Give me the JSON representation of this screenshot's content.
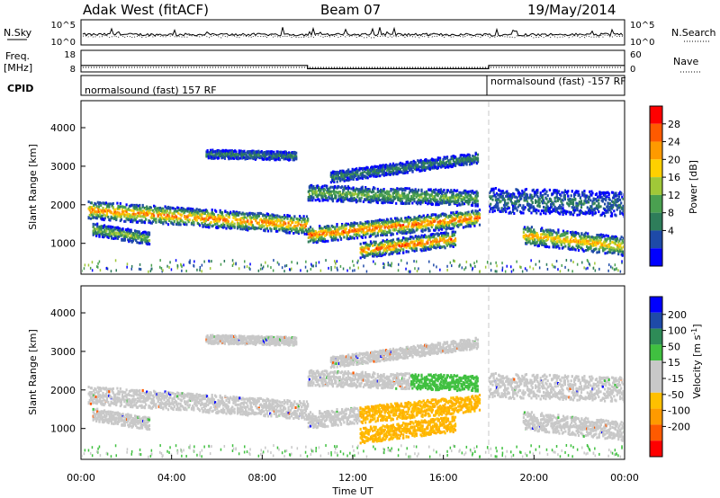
{
  "header": {
    "station": "Adak West (fitACF)",
    "beam": "Beam 07",
    "date": "19/May/2014"
  },
  "panel_labels": {
    "nsky": "N.Sky",
    "nsearch": "N.Search",
    "freq_line1": "Freq.",
    "freq_line2": "[MHz]",
    "nave": "Nave",
    "cpid": "CPID"
  },
  "cpid_labels": [
    "normalsound (fast) 157 RF",
    "normalsound (fast) -157 RF"
  ],
  "colors": {
    "power": [
      "#0000ff",
      "#1e4aa8",
      "#2e7d5a",
      "#4aa050",
      "#a0c838",
      "#ffd000",
      "#ff9a00",
      "#ff5a00",
      "#ff0000"
    ],
    "velocity": [
      "#ff0000",
      "#ff5a00",
      "#ff9a00",
      "#ffc000",
      "#c8c8c8",
      "#c8c8c8",
      "#40c040",
      "#2e8b57",
      "#1e4aa8",
      "#0000ff"
    ],
    "ground_scatter": "#c8c8c8"
  },
  "chart_data": [
    {
      "type": "line",
      "name": "noise",
      "y_ticks_left": [
        "10^5",
        "10^0"
      ],
      "y_ticks_right": [
        "10^5",
        "10^0"
      ]
    },
    {
      "type": "line",
      "name": "frequency-nave",
      "y_ticks_left": [
        "18",
        "8"
      ],
      "y_ticks_right": [
        "60",
        "0"
      ],
      "segments_x": [
        0,
        10,
        18,
        24
      ],
      "freq_levels": [
        11,
        9.5,
        11
      ]
    },
    {
      "type": "heatmap",
      "name": "power",
      "ylabel": "Slant Range [km]",
      "yticks": [
        1000,
        2000,
        3000,
        4000
      ],
      "ylim": [
        200,
        4700
      ],
      "xlim": [
        0,
        24
      ],
      "colorbar_label": "Power [dB]",
      "colorbar_ticks": [
        4,
        8,
        12,
        16,
        20,
        24,
        28
      ]
    },
    {
      "type": "heatmap",
      "name": "velocity",
      "ylabel": "Slant Range [km]",
      "yticks": [
        1000,
        2000,
        3000,
        4000
      ],
      "ylim": [
        200,
        4700
      ],
      "xlim": [
        0,
        24
      ],
      "xlabel": "Time UT",
      "xticks": [
        "00:00",
        "04:00",
        "08:00",
        "12:00",
        "16:00",
        "20:00",
        "00:00"
      ],
      "colorbar_label_main": "Velocity [m s",
      "colorbar_label_sup": "-1",
      "colorbar_label_end": "]",
      "colorbar_ticks": [
        "200",
        "100",
        "50",
        "15",
        "-15",
        "-50",
        "-100",
        "-200"
      ]
    }
  ]
}
